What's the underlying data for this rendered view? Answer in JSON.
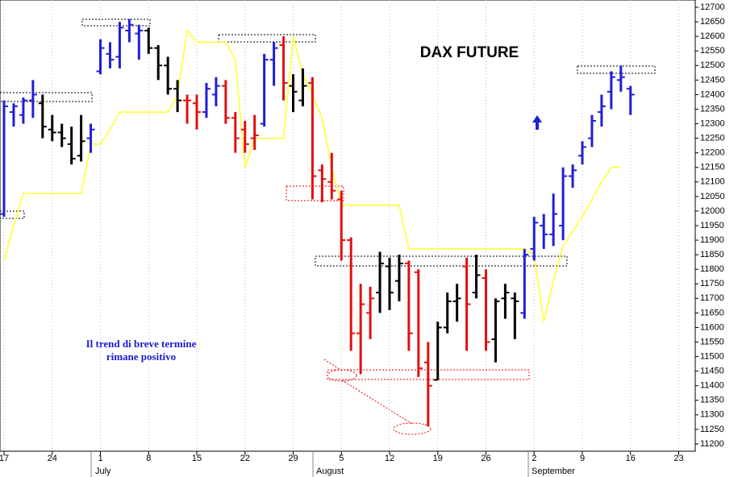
{
  "chart_data": {
    "type": "ohlc",
    "title": "DAX FUTURE",
    "annotation_lines": [
      "Il trend di breve termine",
      "rimane positivo"
    ],
    "month_labels": [
      "July",
      "August",
      "September"
    ],
    "categories": [
      "17",
      null,
      null,
      null,
      null,
      "24",
      null,
      null,
      null,
      null,
      "1",
      null,
      null,
      null,
      null,
      "8",
      null,
      null,
      null,
      null,
      "15",
      null,
      null,
      null,
      null,
      "22",
      null,
      null,
      null,
      null,
      "29",
      null,
      null,
      null,
      null,
      "5",
      null,
      null,
      null,
      null,
      "12",
      null,
      null,
      null,
      null,
      "19",
      null,
      null,
      null,
      null,
      "26",
      null,
      null,
      null,
      null,
      "2",
      null,
      null,
      null,
      null,
      "9",
      null,
      null,
      null,
      null,
      "16",
      null,
      null,
      null,
      null,
      "23"
    ],
    "open": [
      11990,
      12340,
      12330,
      12380,
      12370,
      12280,
      12270,
      12230,
      12190,
      12250,
      12480,
      12540,
      12530,
      12620,
      12610,
      12620,
      12560,
      12500,
      12420,
      12380,
      12370,
      12340,
      12400,
      12430,
      12320,
      12280,
      12250,
      12300,
      12520,
      12570,
      12430,
      12380,
      12440,
      12140,
      12100,
      12040,
      11900,
      11580,
      11650,
      11720,
      11810,
      11760,
      11820,
      11790,
      11480,
      11420,
      11600,
      11690,
      11810,
      11720,
      11770,
      11560,
      11700,
      11700,
      11650,
      11870,
      11950,
      11920,
      11950,
      12120,
      12190,
      12250,
      12340,
      12410,
      12450,
      12420,
      null,
      null,
      null,
      null,
      null
    ],
    "high": [
      12380,
      12370,
      12390,
      12450,
      12400,
      12330,
      12300,
      12290,
      12330,
      12300,
      12590,
      12580,
      12650,
      12660,
      12640,
      12630,
      12570,
      12530,
      12450,
      12400,
      12400,
      12440,
      12460,
      12450,
      12340,
      12310,
      12330,
      12540,
      12580,
      12600,
      12470,
      12490,
      12460,
      12160,
      12200,
      12070,
      11910,
      11750,
      11740,
      11860,
      11840,
      11850,
      11830,
      11800,
      11550,
      11620,
      11720,
      11750,
      11840,
      11850,
      11800,
      11700,
      11750,
      11720,
      11870,
      11980,
      11990,
      12060,
      12150,
      12160,
      12240,
      12330,
      12400,
      12480,
      12500,
      12430,
      null,
      null,
      null,
      null,
      null
    ],
    "low": [
      11980,
      12290,
      12300,
      12320,
      12250,
      12240,
      12220,
      12160,
      12170,
      12200,
      12470,
      12490,
      12490,
      12580,
      12520,
      12540,
      12450,
      12400,
      12340,
      12300,
      12280,
      12320,
      12360,
      12300,
      12200,
      12200,
      12210,
      12290,
      12430,
      12380,
      12340,
      12360,
      12040,
      12030,
      12040,
      11830,
      11520,
      11440,
      11560,
      11650,
      11660,
      11690,
      11520,
      11430,
      11260,
      11420,
      11580,
      11620,
      11520,
      11700,
      11520,
      11480,
      11630,
      11560,
      11630,
      11830,
      11870,
      11880,
      11900,
      12080,
      12160,
      12220,
      12290,
      12350,
      12410,
      12330,
      null,
      null,
      null,
      null,
      null
    ],
    "close": [
      12360,
      12360,
      12380,
      12400,
      12290,
      12270,
      12250,
      12180,
      12240,
      12280,
      12560,
      12520,
      12630,
      12640,
      12620,
      12560,
      12500,
      12420,
      12380,
      12380,
      12340,
      12420,
      12430,
      12320,
      12250,
      12230,
      12260,
      12520,
      12560,
      12440,
      12410,
      12430,
      12120,
      12110,
      12070,
      11900,
      11580,
      11680,
      11700,
      11820,
      11720,
      11820,
      11580,
      11460,
      11400,
      11600,
      11690,
      11700,
      11680,
      11780,
      11550,
      11690,
      11720,
      11690,
      11850,
      11960,
      11920,
      11990,
      12120,
      12140,
      12220,
      12310,
      12360,
      12460,
      12460,
      12400,
      null,
      null,
      null,
      null,
      null
    ],
    "colors": [
      "#1f1fd6",
      "#1f1fd6",
      "#1f1fd6",
      "#1f1fd6",
      "#000000",
      "#000000",
      "#000000",
      "#000000",
      "#000000",
      "#1f1fd6",
      "#1f1fd6",
      "#1f1fd6",
      "#1f1fd6",
      "#1f1fd6",
      "#1f1fd6",
      "#000000",
      "#000000",
      "#000000",
      "#000000",
      "#e01010",
      "#e01010",
      "#1f1fd6",
      "#1f1fd6",
      "#e01010",
      "#e01010",
      "#e01010",
      "#e01010",
      "#1f1fd6",
      "#1f1fd6",
      "#e01010",
      "#000000",
      "#000000",
      "#e01010",
      "#e01010",
      "#e01010",
      "#e01010",
      "#e01010",
      "#e01010",
      "#e01010",
      "#000000",
      "#000000",
      "#000000",
      "#e01010",
      "#e01010",
      "#e01010",
      "#000000",
      "#000000",
      "#000000",
      "#e01010",
      "#000000",
      "#e01010",
      "#000000",
      "#000000",
      "#000000",
      "#1f1fd6",
      "#1f1fd6",
      "#1f1fd6",
      "#1f1fd6",
      "#1f1fd6",
      "#1f1fd6",
      "#1f1fd6",
      "#1f1fd6",
      "#1f1fd6",
      "#1f1fd6",
      "#1f1fd6",
      "#1f1fd6",
      null,
      null,
      null,
      null,
      null
    ],
    "line": {
      "color": "#ffff33",
      "values": [
        11830,
        11950,
        12060,
        12060,
        12060,
        12060,
        12060,
        12060,
        12060,
        12230,
        12230,
        12280,
        12340,
        12340,
        12340,
        12340,
        12340,
        12340,
        12400,
        12620,
        12580,
        12580,
        12580,
        12580,
        12520,
        12150,
        12250,
        12250,
        12250,
        12250,
        12600,
        12470,
        12400,
        12320,
        12150,
        12020,
        12020,
        12020,
        12020,
        12020,
        12020,
        12020,
        11870,
        11870,
        11870,
        11870,
        11870,
        11870,
        11870,
        11870,
        11870,
        11870,
        11870,
        11870,
        11870,
        11850,
        11620,
        11760,
        11880,
        11930,
        11980,
        12040,
        12100,
        12150,
        12150,
        null,
        null,
        null,
        null,
        null,
        null
      ]
    },
    "ylim": [
      11175,
      12725
    ],
    "yticks": [
      11200,
      11250,
      11300,
      11350,
      11400,
      11450,
      11500,
      11550,
      11600,
      11650,
      11700,
      11750,
      11800,
      11850,
      11900,
      11950,
      12000,
      12050,
      12100,
      12150,
      12200,
      12250,
      12300,
      12350,
      12400,
      12450,
      12500,
      12550,
      12600,
      12650,
      12700
    ],
    "grid": true
  }
}
